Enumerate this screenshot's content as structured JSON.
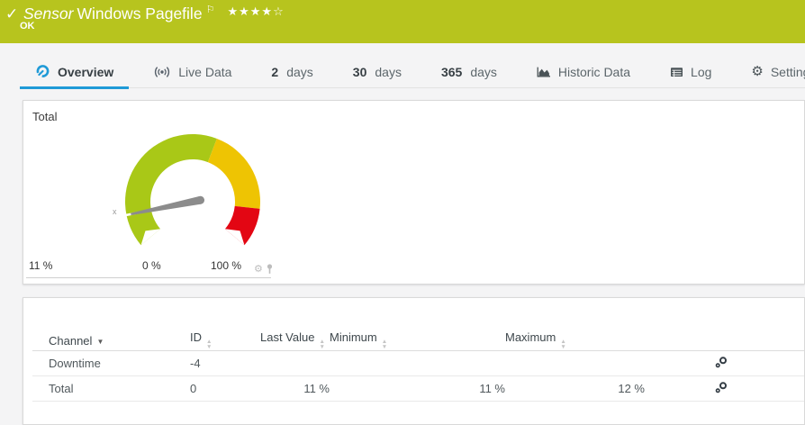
{
  "icons": {
    "check": "✓",
    "flag": "⚐",
    "stars_filled": "★★★★",
    "stars_empty": "☆",
    "gear": "⚙",
    "sort_asc": "▲",
    "sort_desc": "▼",
    "caret_down": "▼"
  },
  "header": {
    "kind": "Sensor",
    "title": "Windows Pagefile",
    "status": "OK",
    "status_color": "#b7c41e",
    "priority_stars": "4 of 5"
  },
  "tabs": {
    "overview": {
      "label": "Overview",
      "active": true
    },
    "live_data": {
      "label": "Live Data"
    },
    "d2": {
      "num": "2",
      "unit": "days"
    },
    "d30": {
      "num": "30",
      "unit": "days"
    },
    "d365": {
      "num": "365",
      "unit": "days"
    },
    "historic": {
      "label": "Historic Data"
    },
    "log": {
      "label": "Log"
    },
    "settings": {
      "label": "Settings"
    }
  },
  "accent_color": "#1f9ad7",
  "gauge_panel": {
    "title": "Total",
    "current": "11 %",
    "min_label": "0 %",
    "max_label": "100 %",
    "needle_marker": "x"
  },
  "chart_data": {
    "type": "gauge",
    "title": "Total",
    "value": 11,
    "unit": "%",
    "min": 0,
    "max": 100,
    "start_angle_deg": -130,
    "end_angle_deg": 130,
    "segments": [
      {
        "from": 0,
        "to": 59,
        "color": "#a9c817"
      },
      {
        "from": 59,
        "to": 87,
        "color": "#eec403"
      },
      {
        "from": 87,
        "to": 100,
        "color": "#e30613"
      }
    ],
    "needle_color": "#8c8c8c"
  },
  "table": {
    "headers": {
      "channel": "Channel",
      "id": "ID",
      "last_value": "Last Value",
      "minimum": "Minimum",
      "maximum": "Maximum"
    },
    "rows": [
      {
        "channel": "Downtime",
        "id": "-4",
        "last_value": "",
        "minimum": "",
        "maximum": ""
      },
      {
        "channel": "Total",
        "id": "0",
        "last_value": "11 %",
        "minimum": "11 %",
        "maximum": "12 %"
      }
    ]
  }
}
